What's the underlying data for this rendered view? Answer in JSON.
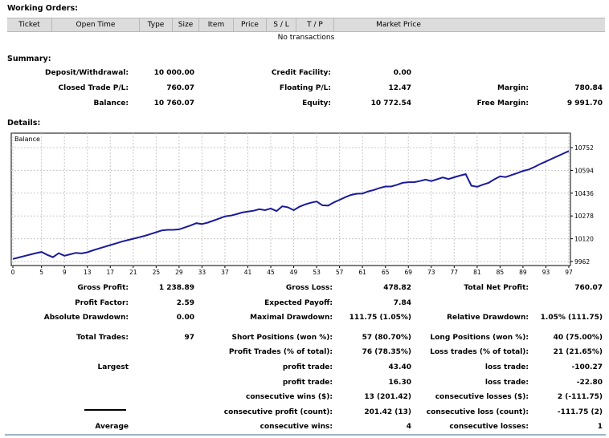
{
  "working_orders": {
    "title": "Working Orders:",
    "columns": [
      "Ticket",
      "Open Time",
      "Type",
      "Size",
      "Item",
      "Price",
      "S / L",
      "T / P",
      "Market Price"
    ],
    "empty_text": "No transactions"
  },
  "summary": {
    "title": "Summary:",
    "rows": [
      [
        {
          "label": "Deposit/Withdrawal:",
          "value": "10 000.00"
        },
        {
          "label": "Credit Facility:",
          "value": "0.00"
        },
        {
          "label": "",
          "value": ""
        }
      ],
      [
        {
          "label": "Closed Trade P/L:",
          "value": "760.07"
        },
        {
          "label": "Floating P/L:",
          "value": "12.47"
        },
        {
          "label": "Margin:",
          "value": "780.84"
        }
      ],
      [
        {
          "label": "Balance:",
          "value": "10 760.07"
        },
        {
          "label": "Equity:",
          "value": "10 772.54"
        },
        {
          "label": "Free Margin:",
          "value": "9 991.70"
        }
      ]
    ]
  },
  "details": {
    "title": "Details:"
  },
  "chart_data": {
    "type": "line",
    "title": "Balance",
    "x_ticks": [
      0,
      5,
      9,
      13,
      17,
      21,
      25,
      29,
      33,
      37,
      41,
      45,
      49,
      53,
      57,
      61,
      65,
      69,
      73,
      77,
      81,
      85,
      89,
      93,
      97
    ],
    "y_ticks": [
      9962,
      10120,
      10278,
      10436,
      10594,
      10752
    ],
    "xlim": [
      0,
      97
    ],
    "ylim": [
      9962,
      10752
    ],
    "grid": true,
    "line_color": "#1a1a9a",
    "x": [
      0,
      1,
      2,
      3,
      4,
      5,
      6,
      7,
      8,
      9,
      10,
      11,
      12,
      13,
      14,
      15,
      16,
      17,
      18,
      19,
      20,
      21,
      22,
      23,
      24,
      25,
      26,
      27,
      28,
      29,
      30,
      31,
      32,
      33,
      34,
      35,
      36,
      37,
      38,
      39,
      40,
      41,
      42,
      43,
      44,
      45,
      46,
      47,
      48,
      49,
      50,
      51,
      52,
      53,
      54,
      55,
      56,
      57,
      58,
      59,
      60,
      61,
      62,
      63,
      64,
      65,
      66,
      67,
      68,
      69,
      70,
      71,
      72,
      73,
      74,
      75,
      76,
      77,
      78,
      79,
      80,
      81,
      82,
      83,
      84,
      85,
      86,
      87,
      88,
      89,
      90,
      91,
      92,
      93,
      94,
      95,
      96,
      97
    ],
    "values": [
      9980,
      9990,
      10000,
      10010,
      10020,
      10028,
      10008,
      9992,
      10020,
      10002,
      10012,
      10022,
      10018,
      10026,
      10040,
      10052,
      10064,
      10076,
      10088,
      10100,
      10110,
      10120,
      10130,
      10140,
      10152,
      10165,
      10178,
      10182,
      10182,
      10185,
      10198,
      10212,
      10228,
      10222,
      10232,
      10246,
      10260,
      10275,
      10280,
      10290,
      10302,
      10308,
      10314,
      10325,
      10318,
      10330,
      10312,
      10345,
      10338,
      10318,
      10342,
      10358,
      10370,
      10378,
      10352,
      10350,
      10372,
      10390,
      10408,
      10424,
      10432,
      10434,
      10448,
      10458,
      10472,
      10482,
      10482,
      10494,
      10508,
      10512,
      10512,
      10520,
      10530,
      10520,
      10532,
      10545,
      10534,
      10546,
      10558,
      10568,
      10488,
      10480,
      10495,
      10508,
      10532,
      10552,
      10548,
      10562,
      10575,
      10590,
      10600,
      10618,
      10638,
      10656,
      10674,
      10692,
      10710,
      10728
    ]
  },
  "stats": {
    "row1": {
      "a_label": "Gross Profit:",
      "a_value": "1 238.89",
      "b_label": "Gross Loss:",
      "b_value": "478.82",
      "c_label": "Total Net Profit:",
      "c_value": "760.07"
    },
    "row2": {
      "a_label": "Profit Factor:",
      "a_value": "2.59",
      "b_label": "Expected Payoff:",
      "b_value": "7.84"
    },
    "row3": {
      "a_label": "Absolute Drawdown:",
      "a_value": "0.00",
      "b_label": "Maximal Drawdown:",
      "b_value": "111.75 (1.05%)",
      "c_label": "Relative Drawdown:",
      "c_value": "1.05% (111.75)"
    },
    "row4": {
      "a_label": "Total Trades:",
      "a_value": "97",
      "b_label": "Short Positions (won %):",
      "b_value": "57 (80.70%)",
      "c_label": "Long Positions (won %):",
      "c_value": "40 (75.00%)"
    },
    "row5": {
      "b_label": "Profit Trades (% of total):",
      "b_value": "76 (78.35%)",
      "c_label": "Loss trades (% of total):",
      "c_value": "21 (21.65%)"
    },
    "row6": {
      "a_label": "Largest",
      "b_label": "profit trade:",
      "b_value": "43.40",
      "c_label": "loss trade:",
      "c_value": "-100.27"
    },
    "row7": {
      "b_label": "profit trade:",
      "b_value": "16.30",
      "c_label": "loss trade:",
      "c_value": "-22.80"
    },
    "row8": {
      "b_label": "consecutive wins ($):",
      "b_value": "13 (201.42)",
      "c_label": "consecutive losses ($):",
      "c_value": "2 (-111.75)"
    },
    "row9": {
      "b_label": "consecutive profit (count):",
      "b_value": "201.42 (13)",
      "c_label": "consecutive loss (count):",
      "c_value": "-111.75 (2)"
    },
    "row10": {
      "a_label": "Average",
      "b_label": "consecutive wins:",
      "b_value": "4",
      "c_label": "consecutive losses:",
      "c_value": "1"
    }
  }
}
